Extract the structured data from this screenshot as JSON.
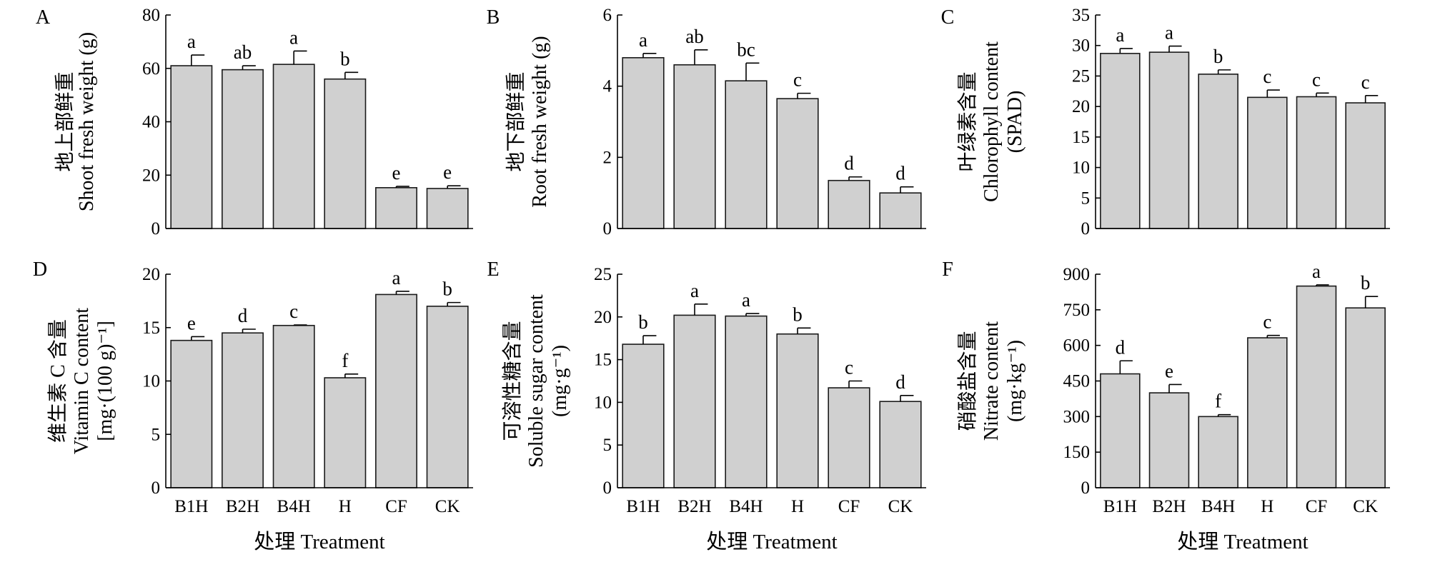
{
  "style": {
    "bar_fill": "#d0d0d0",
    "bar_stroke": "#1a1a1a",
    "axis_color": "#000000",
    "background": "#ffffff"
  },
  "chart_data": [
    {
      "type": "bar",
      "panel": "A",
      "categories": [
        "B1H",
        "B2H",
        "B4H",
        "H",
        "CF",
        "CK"
      ],
      "values": [
        61.0,
        59.5,
        61.5,
        56.0,
        15.3,
        15.0
      ],
      "errors": [
        4.0,
        1.5,
        5.0,
        2.5,
        0.5,
        1.0
      ],
      "letters": [
        "a",
        "ab",
        "a",
        "b",
        "e",
        "e"
      ],
      "ylim": [
        0,
        80
      ],
      "yticks": [
        "0",
        "20",
        "40",
        "60",
        "80"
      ],
      "ylabel": [
        "地上部鲜重",
        "Shoot fresh weight (g)"
      ],
      "xlabel": ""
    },
    {
      "type": "bar",
      "panel": "B",
      "categories": [
        "B1H",
        "B2H",
        "B4H",
        "H",
        "CF",
        "CK"
      ],
      "values": [
        4.8,
        4.6,
        4.15,
        3.65,
        1.35,
        1.0
      ],
      "errors": [
        0.12,
        0.42,
        0.5,
        0.15,
        0.1,
        0.17
      ],
      "letters": [
        "a",
        "ab",
        "bc",
        "c",
        "d",
        "d"
      ],
      "ylim": [
        0,
        6
      ],
      "yticks": [
        "0",
        "2",
        "4",
        "6"
      ],
      "ylabel": [
        "地下部鲜重",
        "Root fresh weight (g)"
      ],
      "xlabel": ""
    },
    {
      "type": "bar",
      "panel": "C",
      "categories": [
        "B1H",
        "B2H",
        "B4H",
        "H",
        "CF",
        "CK"
      ],
      "values": [
        28.7,
        28.9,
        25.3,
        21.5,
        21.6,
        20.6
      ],
      "errors": [
        0.8,
        1.0,
        0.7,
        1.2,
        0.6,
        1.2
      ],
      "letters": [
        "a",
        "a",
        "b",
        "c",
        "c",
        "c"
      ],
      "ylim": [
        0,
        35
      ],
      "yticks": [
        "0",
        "5",
        "10",
        "15",
        "20",
        "25",
        "30",
        "35"
      ],
      "ylabel": [
        "叶绿素含量",
        "Chlorophyll content",
        "(SPAD)"
      ],
      "xlabel": ""
    },
    {
      "type": "bar",
      "panel": "D",
      "categories": [
        "B1H",
        "B2H",
        "B4H",
        "H",
        "CF",
        "CK"
      ],
      "values": [
        13.8,
        14.5,
        15.2,
        10.3,
        18.1,
        17.0
      ],
      "errors": [
        0.35,
        0.35,
        0.05,
        0.35,
        0.3,
        0.35
      ],
      "letters": [
        "e",
        "d",
        "c",
        "f",
        "a",
        "b"
      ],
      "ylim": [
        0,
        20
      ],
      "yticks": [
        "0",
        "5",
        "10",
        "15",
        "20"
      ],
      "ylabel": [
        "维生素 C 含量",
        "Vitamin C content",
        "[mg·(100 g)⁻¹]"
      ],
      "xlabel": "处理 Treatment"
    },
    {
      "type": "bar",
      "panel": "E",
      "categories": [
        "B1H",
        "B2H",
        "B4H",
        "H",
        "CF",
        "CK"
      ],
      "values": [
        16.8,
        20.2,
        20.1,
        18.0,
        11.7,
        10.1
      ],
      "errors": [
        1.0,
        1.3,
        0.3,
        0.7,
        0.8,
        0.7
      ],
      "letters": [
        "b",
        "a",
        "a",
        "b",
        "c",
        "d"
      ],
      "ylim": [
        0,
        25
      ],
      "yticks": [
        "0",
        "5",
        "10",
        "15",
        "20",
        "25"
      ],
      "ylabel": [
        "可溶性糖含量",
        "Soluble sugar content",
        "(mg·g⁻¹)"
      ],
      "xlabel": "处理 Treatment"
    },
    {
      "type": "bar",
      "panel": "F",
      "categories": [
        "B1H",
        "B2H",
        "B4H",
        "H",
        "CF",
        "CK"
      ],
      "values": [
        480,
        400,
        300,
        632,
        850,
        758
      ],
      "errors": [
        55,
        35,
        8,
        10,
        5,
        48
      ],
      "letters": [
        "d",
        "e",
        "f",
        "c",
        "a",
        "b"
      ],
      "ylim": [
        0,
        900
      ],
      "yticks": [
        "0",
        "150",
        "300",
        "450",
        "600",
        "750",
        "900"
      ],
      "ylabel": [
        "硝酸盐含量",
        "Nitrate content",
        "(mg·kg⁻¹)"
      ],
      "xlabel": "处理 Treatment"
    }
  ]
}
